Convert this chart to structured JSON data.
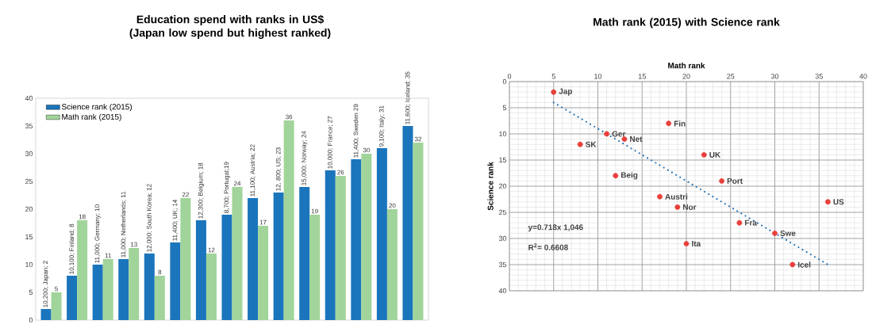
{
  "chart_data": [
    {
      "type": "bar",
      "title": "Education spend with ranks in US$ (Japan low spend but highest ranked)",
      "categories": [
        null,
        null,
        null,
        null,
        null,
        null,
        null,
        null,
        null,
        null,
        null,
        null,
        null,
        null,
        null
      ],
      "ylim": [
        0,
        40
      ],
      "yticks": [
        0,
        5,
        10,
        15,
        20,
        25,
        30,
        35,
        40
      ],
      "legend": "top left",
      "grid": false,
      "series": [
        {
          "name": "Science rank (2015)",
          "color": "#1a75bc",
          "values": [
            2,
            8,
            10,
            11,
            12,
            14,
            18,
            19,
            22,
            23,
            24,
            27,
            29,
            31,
            35
          ],
          "value_labels": [
            "10,200; Japan; 2",
            "10,100; Finland; 8",
            "11,000; Germany; 10",
            "11,000; Netherlands; 11",
            "12,000; South Korea; 12",
            "11,400; UK; 14",
            "12,300; Belgium; 18",
            "8,700; Portugal;19",
            "11,100; Austria; 22",
            "12, 800; US; 23",
            "15,000; Norway; 24",
            "10,000; France; 27",
            "11,400; Sweden 29",
            "9,100; Italy; 31",
            "11,600; Iceland; 35"
          ]
        },
        {
          "name": "Math rank (2015)",
          "color": "#a1d49a",
          "values": [
            5,
            18,
            11,
            13,
            8,
            22,
            12,
            24,
            17,
            36,
            19,
            26,
            30,
            20,
            32
          ],
          "value_labels": [
            "5",
            "18",
            "11",
            "13",
            "8",
            "22",
            "12",
            "24",
            "17",
            "36",
            "19",
            "26",
            "30",
            "20",
            "32"
          ]
        }
      ]
    },
    {
      "type": "scatter",
      "title": "Math rank (2015) with Science rank",
      "xlabel": "Math rank",
      "ylabel": "Science rank",
      "xlim": [
        0,
        40
      ],
      "xticks": [
        0,
        5,
        10,
        15,
        20,
        25,
        30,
        35,
        40
      ],
      "ylim": [
        40,
        0
      ],
      "yticks": [
        0,
        5,
        10,
        15,
        20,
        25,
        30,
        35,
        40
      ],
      "grid": true,
      "series": [
        {
          "type": "scatter",
          "color": "#e8403a",
          "marker": "circle",
          "x": [
            5,
            18,
            11,
            13,
            8,
            22,
            12,
            24,
            17,
            19,
            36,
            26,
            30,
            20,
            32
          ],
          "values": [
            2,
            8,
            10,
            11,
            12,
            14,
            18,
            19,
            22,
            24,
            23,
            27,
            29,
            31,
            35
          ]
        },
        {
          "type": "line",
          "color": "#1f6fb4",
          "line_style": "dotted",
          "marker": "none",
          "x": [
            5,
            36
          ],
          "values": [
            4,
            35
          ]
        }
      ],
      "annotations": [
        {
          "text": "Jap",
          "x": 5,
          "y": 2
        },
        {
          "text": "Fin",
          "x": 18,
          "y": 8
        },
        {
          "text": "Ger",
          "x": 11,
          "y": 10
        },
        {
          "text": "Net",
          "x": 13,
          "y": 11
        },
        {
          "text": "SK",
          "x": 8,
          "y": 12
        },
        {
          "text": "UK",
          "x": 22,
          "y": 14
        },
        {
          "text": "Beig",
          "x": 12,
          "y": 18
        },
        {
          "text": "Port",
          "x": 24,
          "y": 19
        },
        {
          "text": "Austri",
          "x": 17,
          "y": 22
        },
        {
          "text": "Nor",
          "x": 19,
          "y": 24
        },
        {
          "text": "US",
          "x": 36,
          "y": 23
        },
        {
          "text": "Fra",
          "x": 26,
          "y": 27
        },
        {
          "text": "Swe",
          "x": 30,
          "y": 29
        },
        {
          "text": "Ita",
          "x": 20,
          "y": 31
        },
        {
          "text": "Icel",
          "x": 32,
          "y": 35
        },
        "y=0.718x   1,046",
        "R$^{2}$= 0.6608"
      ]
    }
  ]
}
